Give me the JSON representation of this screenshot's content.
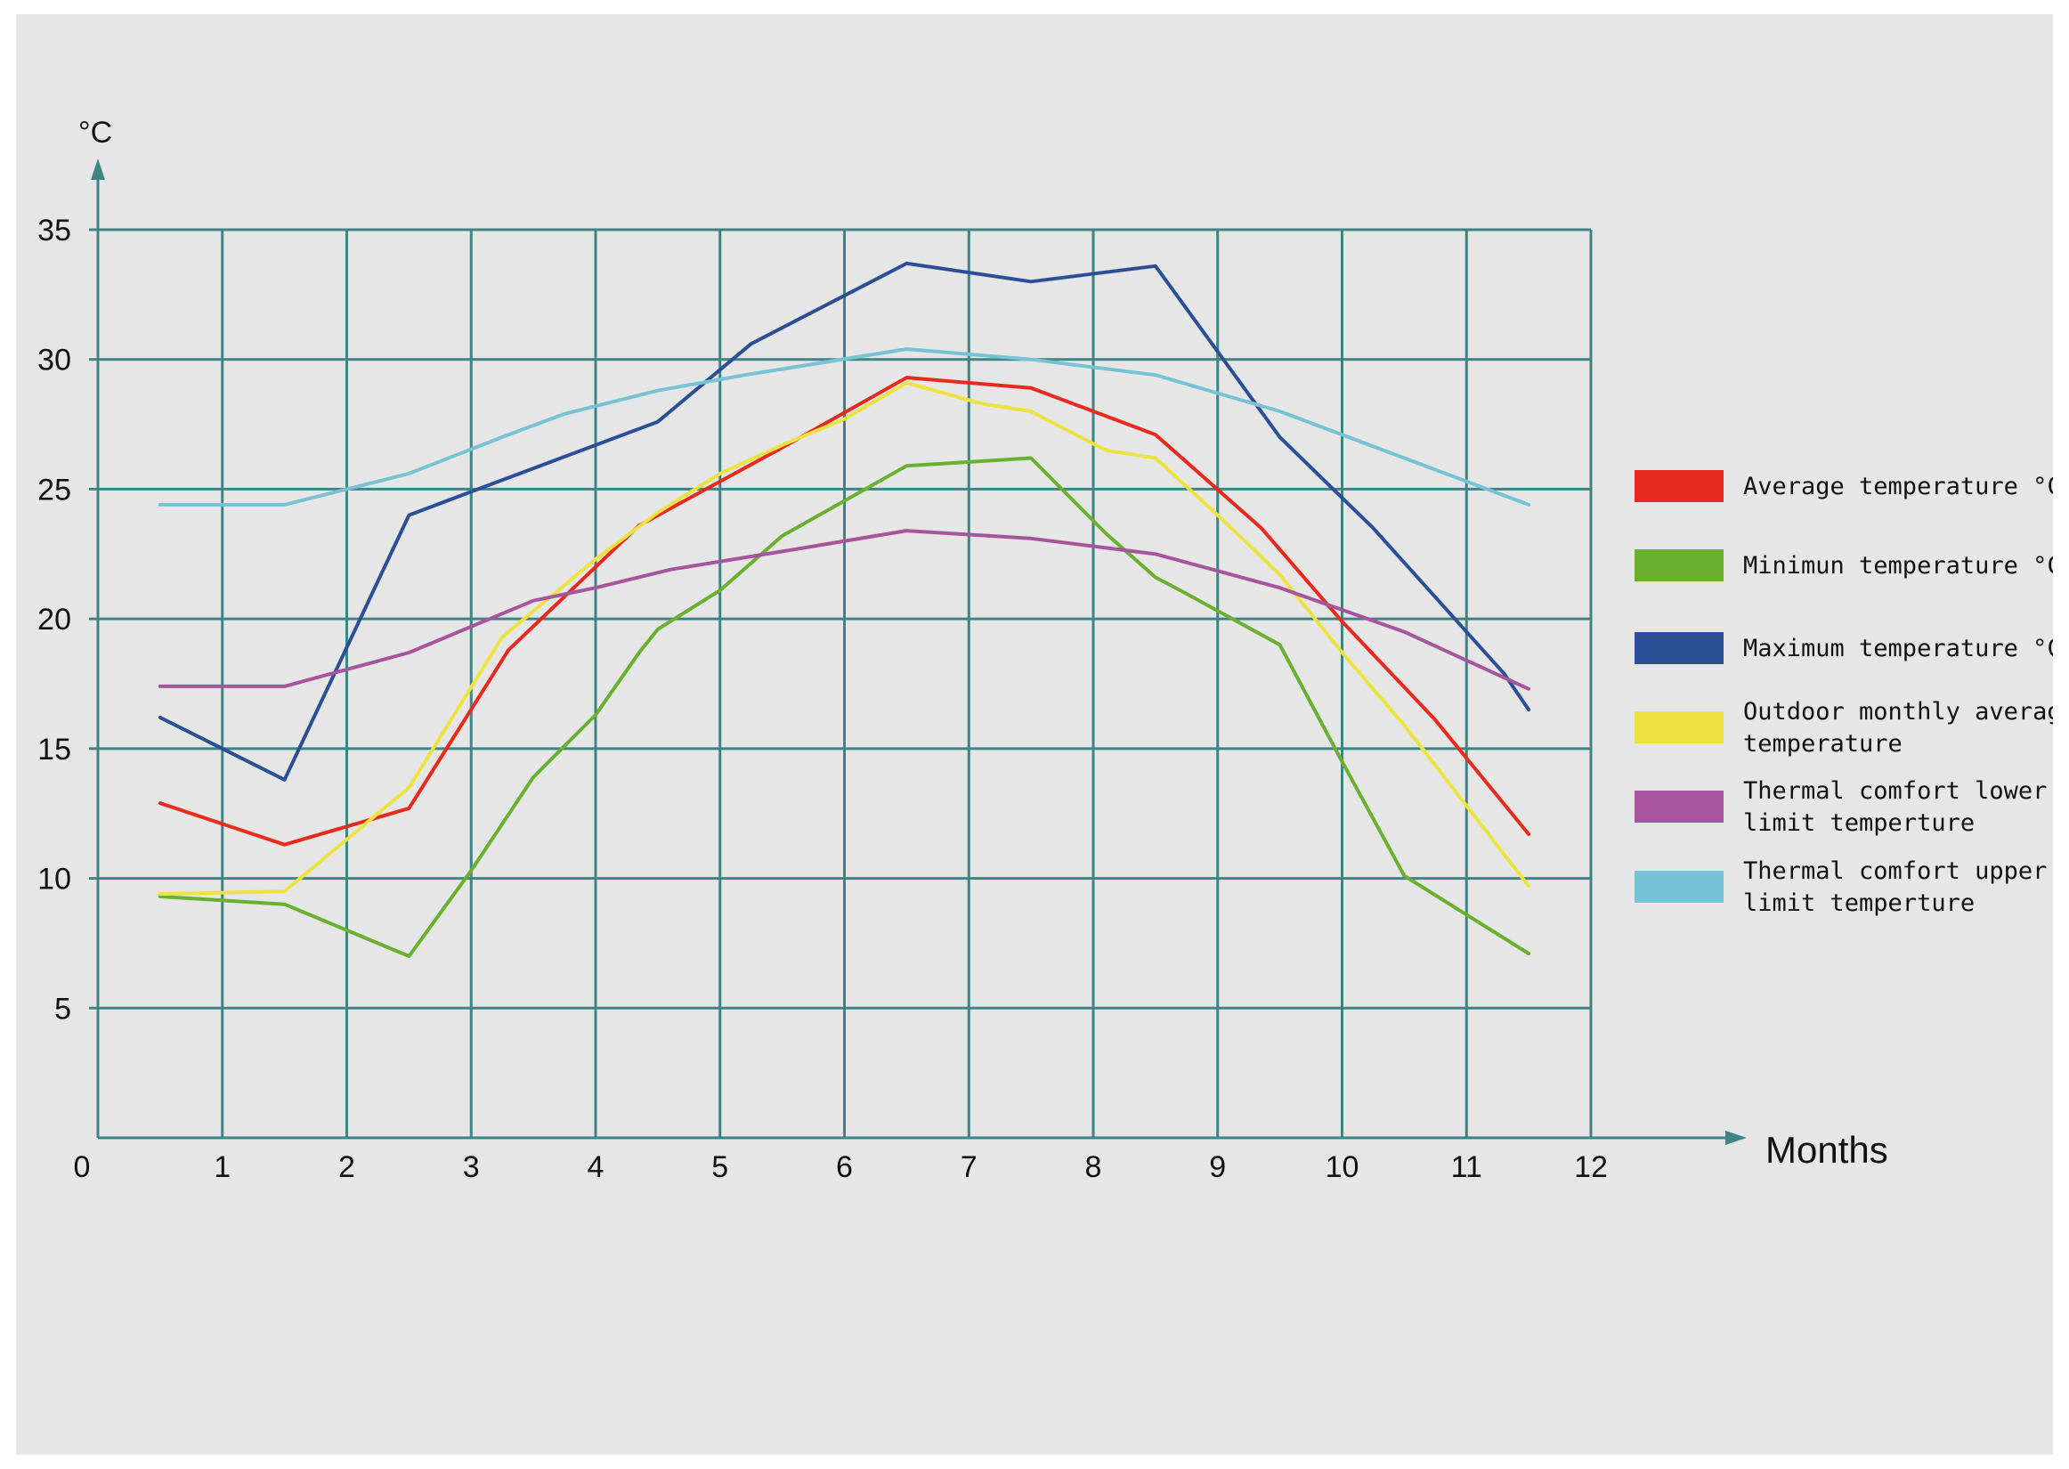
{
  "chart_data": {
    "type": "line",
    "y_unit_label": "°C",
    "xlabel": "Months",
    "xlim": [
      0,
      12
    ],
    "ylim": [
      0,
      35
    ],
    "x_ticks": [
      "0",
      "1",
      "2",
      "3",
      "4",
      "5",
      "6",
      "7",
      "8",
      "9",
      "10",
      "11",
      "12"
    ],
    "y_ticks": [
      "5",
      "10",
      "15",
      "20",
      "25",
      "30",
      "35"
    ],
    "grid": true,
    "legend_position": "right",
    "series": [
      {
        "name": "Average temperature °C",
        "color": "#e8291e",
        "points": [
          [
            0.5,
            12.9
          ],
          [
            1.5,
            11.3
          ],
          [
            2.5,
            12.7
          ],
          [
            3.3,
            18.8
          ],
          [
            4.35,
            23.6
          ],
          [
            5.5,
            26.6
          ],
          [
            6.5,
            29.3
          ],
          [
            7.5,
            28.9
          ],
          [
            8.5,
            27.1
          ],
          [
            9.35,
            23.5
          ],
          [
            10.0,
            19.9
          ],
          [
            10.75,
            16.1
          ],
          [
            11.5,
            11.7
          ]
        ]
      },
      {
        "name": "Minimun temperature °C",
        "color": "#69b02f",
        "points": [
          [
            0.5,
            9.3
          ],
          [
            1.5,
            9.0
          ],
          [
            2.5,
            7.0
          ],
          [
            3.0,
            10.3
          ],
          [
            3.5,
            13.9
          ],
          [
            4.0,
            16.3
          ],
          [
            4.35,
            18.7
          ],
          [
            4.5,
            19.6
          ],
          [
            5.0,
            21.1
          ],
          [
            5.5,
            23.2
          ],
          [
            6.5,
            25.9
          ],
          [
            7.5,
            26.2
          ],
          [
            8.1,
            23.3
          ],
          [
            8.5,
            21.6
          ],
          [
            8.7,
            21.1
          ],
          [
            9.5,
            19.0
          ],
          [
            10.0,
            14.5
          ],
          [
            10.5,
            10.1
          ],
          [
            11.5,
            7.1
          ]
        ]
      },
      {
        "name": "Maximum temperature °C",
        "color": "#2b4f96",
        "points": [
          [
            0.5,
            16.2
          ],
          [
            1.5,
            13.8
          ],
          [
            2.5,
            24.0
          ],
          [
            3.0,
            24.9
          ],
          [
            3.5,
            25.8
          ],
          [
            4.5,
            27.6
          ],
          [
            5.25,
            30.6
          ],
          [
            6.5,
            33.7
          ],
          [
            7.5,
            33.0
          ],
          [
            8.5,
            33.6
          ],
          [
            9.0,
            30.3
          ],
          [
            9.5,
            27.0
          ],
          [
            10.25,
            23.5
          ],
          [
            11.3,
            17.9
          ],
          [
            11.5,
            16.5
          ]
        ]
      },
      {
        "name": "Outdoor monthly average temperature",
        "color": "#ece240",
        "points": [
          [
            0.5,
            9.4
          ],
          [
            1.5,
            9.5
          ],
          [
            2.5,
            13.5
          ],
          [
            3.25,
            19.3
          ],
          [
            4.0,
            22.3
          ],
          [
            4.5,
            24.1
          ],
          [
            5.0,
            25.6
          ],
          [
            5.5,
            26.7
          ],
          [
            6.0,
            27.7
          ],
          [
            6.5,
            29.1
          ],
          [
            7.1,
            28.3
          ],
          [
            7.5,
            28.0
          ],
          [
            8.1,
            26.5
          ],
          [
            8.5,
            26.2
          ],
          [
            9.0,
            24.0
          ],
          [
            9.5,
            21.7
          ],
          [
            10.0,
            18.7
          ],
          [
            10.5,
            15.9
          ],
          [
            11.5,
            9.7
          ]
        ]
      },
      {
        "name": "Thermal comfort lower limit temperture",
        "color": "#a6559d",
        "points": [
          [
            0.5,
            17.4
          ],
          [
            1.5,
            17.4
          ],
          [
            2.5,
            18.7
          ],
          [
            3.5,
            20.7
          ],
          [
            4.0,
            21.2
          ],
          [
            4.6,
            21.9
          ],
          [
            5.5,
            22.6
          ],
          [
            6.5,
            23.4
          ],
          [
            7.5,
            23.1
          ],
          [
            8.5,
            22.5
          ],
          [
            9.5,
            21.2
          ],
          [
            10.5,
            19.5
          ],
          [
            11.5,
            17.3
          ]
        ]
      },
      {
        "name": "Thermal comfort upper limit temperture",
        "color": "#78c2d6",
        "points": [
          [
            0.5,
            24.4
          ],
          [
            1.5,
            24.4
          ],
          [
            2.5,
            25.6
          ],
          [
            3.3,
            27.1
          ],
          [
            3.75,
            27.9
          ],
          [
            4.5,
            28.8
          ],
          [
            5.2,
            29.4
          ],
          [
            6.5,
            30.4
          ],
          [
            7.5,
            30.0
          ],
          [
            8.5,
            29.4
          ],
          [
            9.5,
            28.0
          ],
          [
            10.5,
            26.2
          ],
          [
            11.5,
            24.4
          ]
        ]
      }
    ]
  }
}
